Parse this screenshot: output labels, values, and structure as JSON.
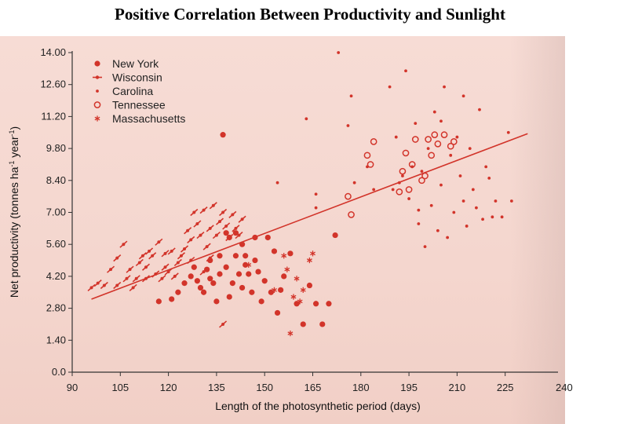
{
  "slide": {
    "title": "Positive Correlation Between Productivity and Sunlight"
  },
  "colors": {
    "data": "#d2342a",
    "axis": "#333333",
    "paper": "#f5d8d0"
  },
  "chart_data": {
    "type": "scatter",
    "xlabel": "Length of the photosynthetic period (days)",
    "ylabel_parts": [
      "Net productivity (tonnes ha",
      "-1",
      " year",
      "-1",
      ")"
    ],
    "xlim": [
      90,
      240
    ],
    "ylim": [
      0,
      14
    ],
    "x_ticks": [
      90,
      105,
      120,
      135,
      150,
      165,
      180,
      195,
      210,
      225
    ],
    "x_tick_labels": [
      "90",
      "105",
      "120",
      "135",
      "150",
      "165",
      "180",
      "195",
      "210",
      "225"
    ],
    "x_tick_last_label": "240",
    "y_ticks": [
      0,
      1.4,
      2.8,
      4.2,
      5.6,
      7.0,
      8.4,
      9.8,
      11.2,
      12.6,
      14.0
    ],
    "y_tick_labels": [
      "0.0",
      "1.40",
      "2.80",
      "4.20",
      "5.60",
      "7.00",
      "8.40",
      "9.80",
      "11.20",
      "12.60",
      "14.00"
    ],
    "legend_position": "top-left",
    "trend_line": {
      "x": [
        96,
        232
      ],
      "y": [
        3.2,
        10.45
      ]
    },
    "series": [
      {
        "name": "New York",
        "marker": "dot",
        "points": [
          [
            117,
            3.1
          ],
          [
            121,
            3.2
          ],
          [
            123,
            3.5
          ],
          [
            125,
            3.9
          ],
          [
            127,
            4.2
          ],
          [
            128,
            4.6
          ],
          [
            130,
            3.7
          ],
          [
            131,
            3.5
          ],
          [
            132,
            4.5
          ],
          [
            133,
            4.1
          ],
          [
            134,
            3.9
          ],
          [
            135,
            3.1
          ],
          [
            136,
            4.3
          ],
          [
            137,
            10.4
          ],
          [
            138,
            6.1
          ],
          [
            139,
            3.3
          ],
          [
            140,
            3.9
          ],
          [
            141,
            6.1
          ],
          [
            142,
            4.3
          ],
          [
            143,
            3.7
          ],
          [
            144,
            4.7
          ],
          [
            145,
            4.3
          ],
          [
            146,
            3.5
          ],
          [
            147,
            5.9
          ],
          [
            148,
            4.4
          ],
          [
            149,
            3.1
          ],
          [
            150,
            4.0
          ],
          [
            151,
            5.9
          ],
          [
            152,
            3.5
          ],
          [
            153,
            5.3
          ],
          [
            154,
            2.6
          ],
          [
            155,
            3.6
          ],
          [
            156,
            4.2
          ],
          [
            158,
            5.2
          ],
          [
            160,
            3.0
          ],
          [
            162,
            2.1
          ],
          [
            164,
            3.8
          ],
          [
            166,
            3.0
          ],
          [
            168,
            2.1
          ],
          [
            170,
            3.0
          ],
          [
            172,
            6.0
          ],
          [
            136,
            5.1
          ],
          [
            139,
            5.9
          ],
          [
            143,
            5.6
          ],
          [
            144,
            5.1
          ],
          [
            141,
            5.1
          ],
          [
            133,
            4.9
          ],
          [
            129,
            4.0
          ],
          [
            147,
            4.9
          ],
          [
            138,
            4.6
          ]
        ]
      },
      {
        "name": "Wisconsin",
        "marker": "dash-dot",
        "points": [
          [
            96,
            3.7
          ],
          [
            98,
            3.9
          ],
          [
            100,
            3.8
          ],
          [
            102,
            4.5
          ],
          [
            104,
            3.8
          ],
          [
            104,
            5.0
          ],
          [
            106,
            5.6
          ],
          [
            107,
            4.1
          ],
          [
            108,
            4.5
          ],
          [
            109,
            3.7
          ],
          [
            110,
            4.1
          ],
          [
            111,
            4.8
          ],
          [
            112,
            5.1
          ],
          [
            113,
            4.6
          ],
          [
            114,
            5.3
          ],
          [
            115,
            5.1
          ],
          [
            116,
            4.3
          ],
          [
            117,
            5.7
          ],
          [
            118,
            4.1
          ],
          [
            119,
            4.6
          ],
          [
            120,
            4.4
          ],
          [
            121,
            5.3
          ],
          [
            122,
            4.2
          ],
          [
            123,
            4.8
          ],
          [
            124,
            5.1
          ],
          [
            125,
            5.4
          ],
          [
            126,
            6.2
          ],
          [
            127,
            5.8
          ],
          [
            128,
            7.0
          ],
          [
            129,
            6.5
          ],
          [
            130,
            6.0
          ],
          [
            131,
            7.1
          ],
          [
            132,
            5.5
          ],
          [
            133,
            6.3
          ],
          [
            134,
            7.3
          ],
          [
            135,
            6.0
          ],
          [
            136,
            6.6
          ],
          [
            137,
            7.0
          ],
          [
            138,
            6.4
          ],
          [
            139,
            5.9
          ],
          [
            140,
            6.9
          ],
          [
            141,
            6.3
          ],
          [
            142,
            6.0
          ],
          [
            143,
            6.7
          ],
          [
            137,
            2.1
          ],
          [
            119,
            5.2
          ],
          [
            113,
            4.1
          ],
          [
            127,
            4.9
          ],
          [
            133,
            5.0
          ],
          [
            131,
            4.4
          ]
        ]
      },
      {
        "name": "Carolina",
        "marker": "small-dot",
        "points": [
          [
            154,
            8.3
          ],
          [
            163,
            11.1
          ],
          [
            166,
            7.2
          ],
          [
            166,
            7.8
          ],
          [
            173,
            14.0
          ],
          [
            176,
            10.8
          ],
          [
            177,
            12.1
          ],
          [
            178,
            8.3
          ],
          [
            182,
            9.0
          ],
          [
            184,
            8.0
          ],
          [
            189,
            12.5
          ],
          [
            190,
            8.0
          ],
          [
            191,
            10.3
          ],
          [
            192,
            8.3
          ],
          [
            193,
            8.6
          ],
          [
            194,
            13.2
          ],
          [
            195,
            7.6
          ],
          [
            196,
            9.0
          ],
          [
            197,
            10.9
          ],
          [
            198,
            7.1
          ],
          [
            199,
            8.8
          ],
          [
            200,
            5.5
          ],
          [
            201,
            9.8
          ],
          [
            202,
            7.3
          ],
          [
            203,
            11.4
          ],
          [
            204,
            6.2
          ],
          [
            205,
            8.2
          ],
          [
            206,
            12.5
          ],
          [
            207,
            5.9
          ],
          [
            208,
            9.5
          ],
          [
            209,
            7.0
          ],
          [
            210,
            10.3
          ],
          [
            211,
            8.6
          ],
          [
            212,
            12.1
          ],
          [
            213,
            6.4
          ],
          [
            214,
            9.8
          ],
          [
            215,
            8.0
          ],
          [
            216,
            7.2
          ],
          [
            217,
            11.5
          ],
          [
            218,
            6.7
          ],
          [
            219,
            9.0
          ],
          [
            220,
            8.5
          ],
          [
            221,
            6.8
          ],
          [
            222,
            7.5
          ],
          [
            224,
            6.8
          ],
          [
            226,
            10.5
          ],
          [
            227,
            7.5
          ],
          [
            205,
            11.0
          ],
          [
            198,
            6.5
          ],
          [
            212,
            7.5
          ]
        ]
      },
      {
        "name": "Tennessee",
        "marker": "ring",
        "points": [
          [
            176,
            7.7
          ],
          [
            177,
            6.9
          ],
          [
            182,
            9.5
          ],
          [
            183,
            9.1
          ],
          [
            184,
            10.1
          ],
          [
            193,
            8.8
          ],
          [
            194,
            9.6
          ],
          [
            195,
            8.0
          ],
          [
            196,
            9.1
          ],
          [
            197,
            10.2
          ],
          [
            199,
            8.4
          ],
          [
            200,
            8.6
          ],
          [
            201,
            10.2
          ],
          [
            202,
            9.5
          ],
          [
            203,
            10.4
          ],
          [
            204,
            10.0
          ],
          [
            206,
            10.4
          ],
          [
            208,
            9.9
          ],
          [
            209,
            10.1
          ],
          [
            192,
            7.9
          ]
        ]
      },
      {
        "name": "Massachusetts",
        "marker": "asterisk",
        "points": [
          [
            145,
            4.7
          ],
          [
            153,
            3.6
          ],
          [
            156,
            5.1
          ],
          [
            157,
            4.5
          ],
          [
            158,
            1.7
          ],
          [
            159,
            3.3
          ],
          [
            160,
            4.1
          ],
          [
            161,
            3.1
          ],
          [
            162,
            3.6
          ],
          [
            164,
            4.9
          ],
          [
            165,
            5.2
          ]
        ]
      }
    ]
  }
}
